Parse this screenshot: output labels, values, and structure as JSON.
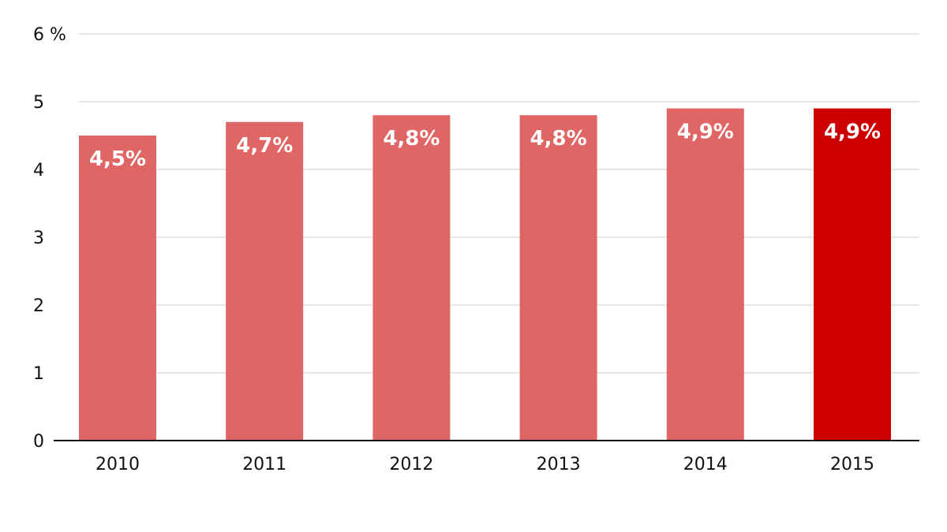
{
  "chart_data": {
    "type": "bar",
    "categories": [
      "2010",
      "2011",
      "2012",
      "2013",
      "2014",
      "2015"
    ],
    "values": [
      4.5,
      4.7,
      4.8,
      4.8,
      4.9,
      4.9
    ],
    "data_labels": [
      "4,5%",
      "4,7%",
      "4,8%",
      "4,8%",
      "4,9%",
      "4,9%"
    ],
    "title": "",
    "xlabel": "",
    "ylabel": "",
    "ylim": [
      0,
      6
    ],
    "y_ticks": [
      0,
      1,
      2,
      3,
      4,
      5,
      6
    ],
    "y_tick_labels": [
      "0",
      "1",
      "2",
      "3",
      "4",
      "5",
      "6 %"
    ],
    "grid": true,
    "colors": {
      "bar": "#e06666",
      "highlight": "#cc0000"
    },
    "highlight_index": 5
  }
}
